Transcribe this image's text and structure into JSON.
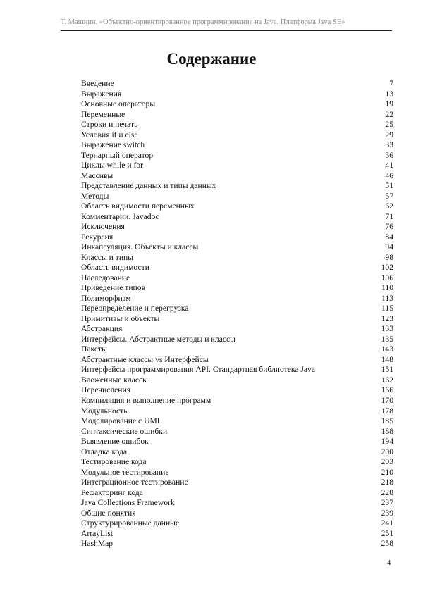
{
  "header": {
    "text": "Т.  Машнин.  «Объектно-ориентированное программирование на Java. Платформа Java SE»"
  },
  "title": "Содержание",
  "toc": [
    {
      "label": "Введение",
      "page": "7"
    },
    {
      "label": "Выражения",
      "page": "13"
    },
    {
      "label": "Основные операторы",
      "page": "19"
    },
    {
      "label": "Переменные",
      "page": "22"
    },
    {
      "label": "Строки и печать",
      "page": "25"
    },
    {
      "label": "Условия if и else",
      "page": "29"
    },
    {
      "label": "Выражение switch",
      "page": "33"
    },
    {
      "label": "Тернарный оператор",
      "page": "36"
    },
    {
      "label": "Циклы while и for",
      "page": "41"
    },
    {
      "label": "Массивы",
      "page": "46"
    },
    {
      "label": "Представление данных и типы данных",
      "page": "51"
    },
    {
      "label": "Методы",
      "page": "57"
    },
    {
      "label": "Область видимости переменных",
      "page": "62"
    },
    {
      "label": "Комментарии. Javadoc",
      "page": "71"
    },
    {
      "label": "Исключения",
      "page": "76"
    },
    {
      "label": "Рекурсия",
      "page": "84"
    },
    {
      "label": "Инкапсуляция. Объекты и классы",
      "page": "94"
    },
    {
      "label": "Классы и типы",
      "page": "98"
    },
    {
      "label": "Область видимости",
      "page": "102"
    },
    {
      "label": "Наследование",
      "page": "106"
    },
    {
      "label": "Приведение типов",
      "page": "110"
    },
    {
      "label": "Полиморфизм",
      "page": "113"
    },
    {
      "label": "Переопределение и перегрузка",
      "page": "115"
    },
    {
      "label": "Примитивы и объекты",
      "page": "123"
    },
    {
      "label": "Абстракция",
      "page": "133"
    },
    {
      "label": "Интерфейсы. Абстрактные методы и классы",
      "page": "135"
    },
    {
      "label": "Пакеты",
      "page": "143"
    },
    {
      "label": "Абстрактные классы vs Интерфейсы",
      "page": "148"
    },
    {
      "label": "Интерфейсы программирования API. Стандартная библиотека Java",
      "page": "151"
    },
    {
      "label": "Вложенные классы",
      "page": "162"
    },
    {
      "label": "Перечисления",
      "page": "166"
    },
    {
      "label": "Компиляция и выполнение программ",
      "page": "170"
    },
    {
      "label": "Модульность",
      "page": "178"
    },
    {
      "label": "Моделирование с UML",
      "page": "185"
    },
    {
      "label": "Синтаксические ошибки",
      "page": "188"
    },
    {
      "label": "Выявление ошибок",
      "page": "194"
    },
    {
      "label": "Отладка кода",
      "page": "200"
    },
    {
      "label": "Тестирование кода",
      "page": "203"
    },
    {
      "label": "Модульное тестирование",
      "page": "210"
    },
    {
      "label": "Интеграционное тестирование",
      "page": "218"
    },
    {
      "label": "Рефакторинг кода",
      "page": "228"
    },
    {
      "label": "Java Collections Framework",
      "page": "237"
    },
    {
      "label": "Общие понятия",
      "page": "239"
    },
    {
      "label": "Структурированные данные",
      "page": "241"
    },
    {
      "label": "ArrayList",
      "page": "251"
    },
    {
      "label": "HashMap",
      "page": "258"
    }
  ],
  "page_number": "4"
}
